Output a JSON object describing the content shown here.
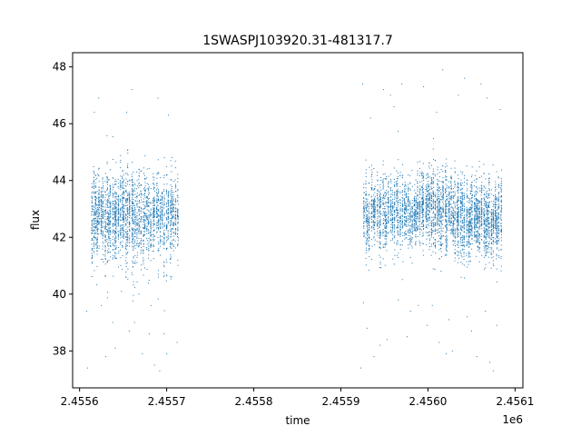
{
  "chart_data": {
    "type": "scatter",
    "title": "1SWASPJ103920.31-481317.7",
    "xlabel": "time",
    "ylabel": "flux",
    "x_offset_text": "1e6",
    "xlim": [
      2455592,
      2456109
    ],
    "ylim": [
      36.7,
      48.5
    ],
    "grid": false,
    "x_ticks": [
      {
        "value": 2455600,
        "label": "2.4556"
      },
      {
        "value": 2455700,
        "label": "2.4557"
      },
      {
        "value": 2455800,
        "label": "2.4558"
      },
      {
        "value": 2455900,
        "label": "2.4559"
      },
      {
        "value": 2456000,
        "label": "2.4560"
      },
      {
        "value": 2456100,
        "label": "2.4561"
      }
    ],
    "y_ticks": [
      {
        "value": 38,
        "label": "38"
      },
      {
        "value": 40,
        "label": "40"
      },
      {
        "value": 42,
        "label": "42"
      },
      {
        "value": 44,
        "label": "44"
      },
      {
        "value": 46,
        "label": "46"
      },
      {
        "value": 48,
        "label": "48"
      }
    ],
    "marker_color": "#1f77b4",
    "series": [
      {
        "segments": [
          {
            "x_range": [
              2455613,
              2455663
            ],
            "y_mean": 42.7,
            "y_spread": 1.15,
            "count": 1400
          },
          {
            "x_range": [
              2455663,
              2455714
            ],
            "y_mean": 42.6,
            "y_spread": 1.1,
            "count": 1100
          },
          {
            "x_range": [
              2455925,
              2455985
            ],
            "y_mean": 42.8,
            "y_spread": 0.95,
            "count": 1300
          },
          {
            "x_range": [
              2455985,
              2456041
            ],
            "y_mean": 42.9,
            "y_spread": 1.0,
            "count": 1500
          },
          {
            "x_range": [
              2456041,
              2456085
            ],
            "y_mean": 42.6,
            "y_spread": 1.05,
            "count": 1300
          }
        ],
        "outliers": [
          [
            2455609,
            37.4
          ],
          [
            2455608,
            39.4
          ],
          [
            2455622,
            46.9
          ],
          [
            2455625,
            39.6
          ],
          [
            2455630,
            37.8
          ],
          [
            2455638,
            39.0
          ],
          [
            2455641,
            38.1
          ],
          [
            2455648,
            40.1
          ],
          [
            2455654,
            46.4
          ],
          [
            2455660,
            47.2
          ],
          [
            2455663,
            39.0
          ],
          [
            2455668,
            40.0
          ],
          [
            2455672,
            37.9
          ],
          [
            2455680,
            38.6
          ],
          [
            2455682,
            39.6
          ],
          [
            2455686,
            37.5
          ],
          [
            2455690,
            46.9
          ],
          [
            2455692,
            37.3
          ],
          [
            2455697,
            38.6
          ],
          [
            2455700,
            37.9
          ],
          [
            2455702,
            46.3
          ],
          [
            2455712,
            38.3
          ],
          [
            2455617,
            46.4
          ],
          [
            2455657,
            38.7
          ],
          [
            2455923,
            37.4
          ],
          [
            2455925,
            47.4
          ],
          [
            2455926,
            39.7
          ],
          [
            2455930,
            38.8
          ],
          [
            2455934,
            46.2
          ],
          [
            2455938,
            37.8
          ],
          [
            2455945,
            38.2
          ],
          [
            2455949,
            47.2
          ],
          [
            2455953,
            38.4
          ],
          [
            2455957,
            47.0
          ],
          [
            2455961,
            46.6
          ],
          [
            2455966,
            39.8
          ],
          [
            2455970,
            47.4
          ],
          [
            2455976,
            38.5
          ],
          [
            2455980,
            39.4
          ],
          [
            2455989,
            39.6
          ],
          [
            2455995,
            47.3
          ],
          [
            2455999,
            38.9
          ],
          [
            2456005,
            39.6
          ],
          [
            2456010,
            46.4
          ],
          [
            2456017,
            47.9
          ],
          [
            2456021,
            37.9
          ],
          [
            2456028,
            38.0
          ],
          [
            2456035,
            47.0
          ],
          [
            2456042,
            47.6
          ],
          [
            2456045,
            39.2
          ],
          [
            2456050,
            38.7
          ],
          [
            2456056,
            37.8
          ],
          [
            2456061,
            47.4
          ],
          [
            2456066,
            39.4
          ],
          [
            2456071,
            37.6
          ],
          [
            2456075,
            37.3
          ],
          [
            2456079,
            38.9
          ],
          [
            2456083,
            46.5
          ],
          [
            2456013,
            38.3
          ],
          [
            2456024,
            39.1
          ],
          [
            2456068,
            46.9
          ]
        ]
      }
    ]
  }
}
